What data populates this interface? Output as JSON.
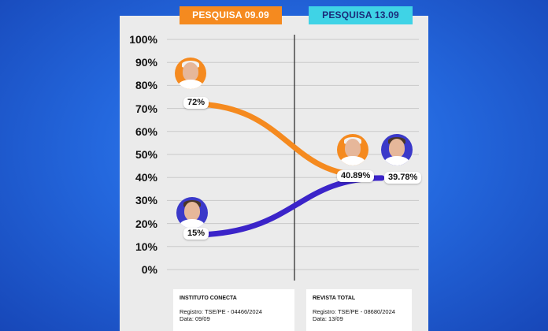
{
  "chart_data": {
    "type": "line",
    "categories": [
      "PESQUISA 09.09",
      "PESQUISA 13.09"
    ],
    "series": [
      {
        "values": [
          72,
          40.89
        ],
        "labels": [
          "72%",
          "40.89%"
        ],
        "color": "#f58a1f"
      },
      {
        "values": [
          15,
          39.78
        ],
        "labels": [
          "15%",
          "39.78%"
        ],
        "color": "#3b24c9"
      }
    ],
    "ylim": [
      0,
      100
    ],
    "y_ticks": [
      "100%",
      "90%",
      "80%",
      "70%",
      "60%",
      "50%",
      "40%",
      "30%",
      "20%",
      "10%",
      "0%"
    ],
    "grid": true,
    "title": "",
    "xlabel": "",
    "ylabel": ""
  },
  "headers": {
    "left": "PESQUISA 09.09",
    "right": "PESQUISA 13.09"
  },
  "sources": [
    {
      "title": "INSTITUTO CONECTA",
      "registro": "Registro: TSE/PE - 04466/2024",
      "data": "Data: 09/09"
    },
    {
      "title": "REVISTA TOTAL",
      "registro": "Registro: TSE/PE - 08680/2024",
      "data": "Data: 13/09"
    }
  ],
  "colors": {
    "orange": "#f58a1f",
    "cyan": "#3fd3e6",
    "blue": "#3b24c9",
    "background": "#1f5fd6"
  }
}
